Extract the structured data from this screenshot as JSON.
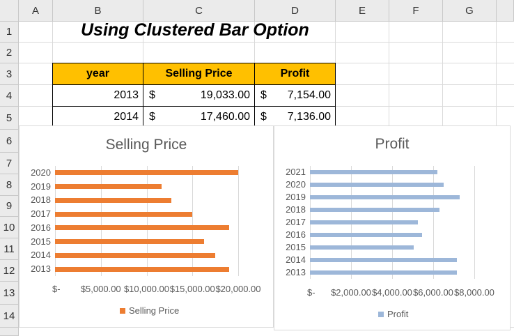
{
  "sheet": {
    "columns": [
      "A",
      "B",
      "C",
      "D",
      "E",
      "F",
      "G"
    ],
    "rows": [
      "1",
      "2",
      "3",
      "4",
      "5",
      "6",
      "7",
      "8",
      "9",
      "10",
      "11",
      "12",
      "13",
      "14"
    ]
  },
  "title": "Using Clustered Bar Option",
  "table": {
    "headers": [
      "year",
      "Selling Price",
      "Profit"
    ],
    "currency": "$",
    "rows": [
      {
        "year": "2013",
        "price": "19,033.00",
        "profit": "7,154.00"
      },
      {
        "year": "2014",
        "price": "17,460.00",
        "profit": "7,136.00"
      }
    ]
  },
  "chart_data": [
    {
      "type": "bar",
      "title": "Selling Price",
      "categories": [
        "2013",
        "2014",
        "2015",
        "2016",
        "2017",
        "2018",
        "2019",
        "2020"
      ],
      "series": [
        {
          "name": "Selling Price",
          "values": [
            19033,
            17460,
            16300,
            19000,
            15000,
            12700,
            11600,
            20000
          ],
          "color": "#ed7d31"
        }
      ],
      "xticks": [
        "$-",
        "$5,000.00",
        "$10,000.00",
        "$15,000.00",
        "$20,000.00"
      ],
      "xlim": [
        0,
        20000
      ],
      "grid": true,
      "legend": "bottom"
    },
    {
      "type": "bar",
      "title": "Profit",
      "categories": [
        "2013",
        "2014",
        "2015",
        "2016",
        "2017",
        "2018",
        "2019",
        "2020",
        "2021"
      ],
      "series": [
        {
          "name": "Profit",
          "values": [
            7154,
            7136,
            5050,
            5450,
            5250,
            6300,
            7300,
            6500,
            6200
          ],
          "color": "#9db7d9"
        }
      ],
      "xticks": [
        "$-",
        "$2,000.00",
        "$4,000.00",
        "$6,000.00",
        "$8,000.00"
      ],
      "xlim": [
        0,
        8000
      ],
      "grid": true,
      "legend": "bottom"
    }
  ]
}
